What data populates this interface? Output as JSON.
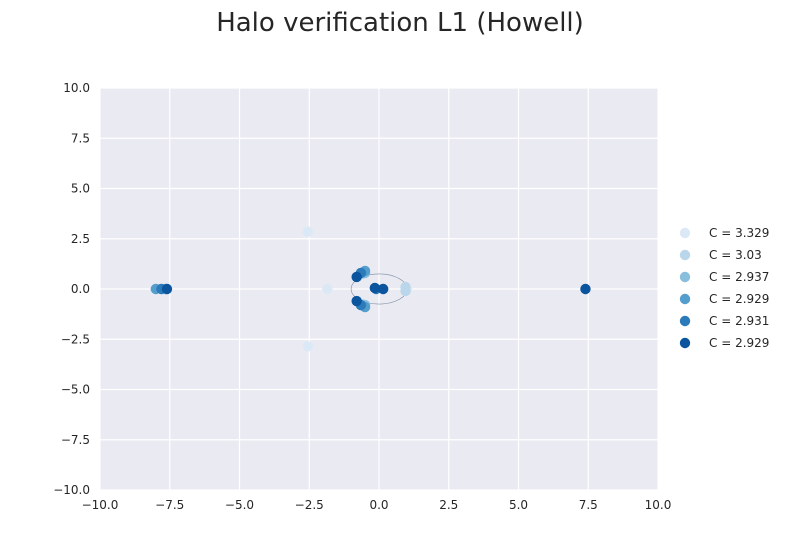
{
  "chart_data": {
    "type": "scatter",
    "title": "Halo verification L1 (Howell)",
    "xlim": [
      -10,
      10
    ],
    "ylim": [
      -10,
      10
    ],
    "xticks": [
      "−10.0",
      "−7.5",
      "−5.0",
      "−2.5",
      "0.0",
      "2.5",
      "5.0",
      "7.5",
      "10.0"
    ],
    "yticks": [
      "10.0",
      "7.5",
      "5.0",
      "2.5",
      "0.0",
      "−2.5",
      "−5.0",
      "−7.5",
      "−10.0"
    ],
    "grid": true,
    "legend_position": "right",
    "background": "#eaeaf2",
    "series": [
      {
        "name": "C = 3.329",
        "color": "#dbe9f6",
        "points": [
          [
            -2.55,
            2.85
          ],
          [
            -2.55,
            -2.85
          ],
          [
            -1.85,
            0.0
          ],
          [
            1.0,
            0.0
          ]
        ]
      },
      {
        "name": "C = 3.03",
        "color": "#bad6eb",
        "points": [
          [
            -0.6,
            0.75
          ],
          [
            -0.6,
            -0.75
          ],
          [
            0.95,
            0.1
          ],
          [
            0.95,
            -0.1
          ],
          [
            -7.7,
            0.0
          ]
        ]
      },
      {
        "name": "C = 2.937",
        "color": "#89bedc",
        "points": [
          [
            -0.5,
            0.8
          ],
          [
            -0.5,
            -0.8
          ],
          [
            -7.65,
            0.0
          ]
        ]
      },
      {
        "name": "C = 2.929",
        "color": "#539ecd",
        "points": [
          [
            -0.5,
            0.9
          ],
          [
            -0.5,
            -0.9
          ],
          [
            -8.0,
            0.0
          ]
        ]
      },
      {
        "name": "C = 2.931",
        "color": "#2b7bba",
        "points": [
          [
            -0.65,
            0.8
          ],
          [
            -0.65,
            -0.8
          ],
          [
            -7.8,
            0.0
          ],
          [
            -0.1,
            0.0
          ]
        ]
      },
      {
        "name": "C = 2.929",
        "color": "#0b559f",
        "points": [
          [
            -0.8,
            0.6
          ],
          [
            -0.8,
            -0.6
          ],
          [
            -0.15,
            0.05
          ],
          [
            0.15,
            0.0
          ],
          [
            -7.6,
            0.0
          ],
          [
            7.4,
            0.0
          ]
        ]
      }
    ],
    "reference_ellipse": {
      "center": [
        0.0,
        0.0
      ],
      "rx": 1.0,
      "ry": 0.75
    }
  }
}
